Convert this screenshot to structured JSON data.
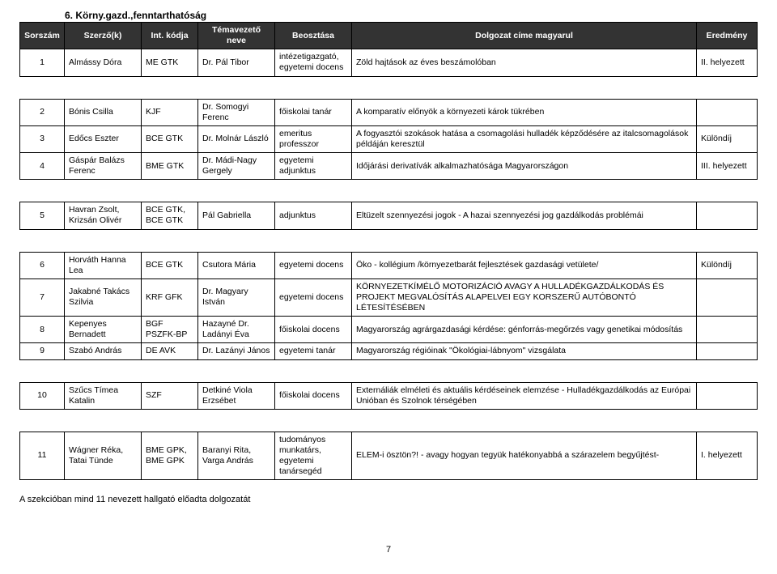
{
  "section_title": "6. Körny.gazd.,fenntarthatóság",
  "headers": {
    "col1": "Sorszám",
    "col2": "Szerző(k)",
    "col3": "Int. kódja",
    "col4": "Témavezető neve",
    "col5": "Beosztása",
    "col6": "Dolgozat címe magyarul",
    "col7": "Eredmény"
  },
  "rows": [
    {
      "n": "1",
      "author": "Almássy Dóra",
      "inst": "ME GTK",
      "sup": "Dr. Pál Tibor",
      "pos": "intézetigazgató, egyetemi docens",
      "title": "Zöld hajtások az éves beszámolóban",
      "res": "II. helyezett"
    },
    {
      "n": "2",
      "author": "Bónis Csilla",
      "inst": "KJF",
      "sup": "Dr. Somogyi Ferenc",
      "pos": "főiskolai tanár",
      "title": "A komparatív előnyök a környezeti károk tükrében",
      "res": ""
    },
    {
      "n": "3",
      "author": "Edőcs Eszter",
      "inst": "BCE GTK",
      "sup": "Dr. Molnár László",
      "pos": "emeritus professzor",
      "title": "A fogyasztói szokások hatása a csomagolási hulladék képződésére az italcsomagolások példáján keresztül",
      "res": "Különdíj"
    },
    {
      "n": "4",
      "author": "Gáspár Balázs Ferenc",
      "inst": "BME GTK",
      "sup": "Dr. Mádi-Nagy Gergely",
      "pos": "egyetemi adjunktus",
      "title": "Időjárási derivatívák alkalmazhatósága Magyarországon",
      "res": "III. helyezett"
    },
    {
      "n": "5",
      "author": "Havran Zsolt, Krizsán Olivér",
      "inst": "BCE GTK, BCE GTK",
      "sup": "Pál Gabriella",
      "pos": "adjunktus",
      "title": "Eltüzelt szennyezési jogok - A hazai szennyezési jog gazdálkodás problémái",
      "res": ""
    },
    {
      "n": "6",
      "author": "Horváth Hanna Lea",
      "inst": "BCE GTK",
      "sup": "Csutora Mária",
      "pos": "egyetemi docens",
      "title": "Öko - kollégium /környezetbarát fejlesztések gazdasági vetülete/",
      "res": "Különdíj"
    },
    {
      "n": "7",
      "author": "Jakabné Takács Szilvia",
      "inst": "KRF GFK",
      "sup": "Dr. Magyary István",
      "pos": "egyetemi docens",
      "title": "KÖRNYEZETKÍMÉLŐ MOTORIZÁCIÓ AVAGY A HULLADÉKGAZDÁLKODÁS ÉS PROJEKT MEGVALÓSÍTÁS ALAPELVEI EGY KORSZERŰ AUTÓBONTÓ LÉTESÍTÉSÉBEN",
      "res": ""
    },
    {
      "n": "8",
      "author": "Kepenyes Bernadett",
      "inst": "BGF PSZFK-BP",
      "sup": "Hazayné Dr. Ladányi Éva",
      "pos": "főiskolai docens",
      "title": "Magyarország agrárgazdasági kérdése: génforrás-megőrzés vagy genetikai módosítás",
      "res": ""
    },
    {
      "n": "9",
      "author": "Szabó András",
      "inst": "DE AVK",
      "sup": "Dr. Lazányi János",
      "pos": "egyetemi tanár",
      "title": "Magyarország régióinak \"Ökológiai-lábnyom\" vizsgálata",
      "res": ""
    },
    {
      "n": "10",
      "author": "Szűcs Tímea Katalin",
      "inst": "SZF",
      "sup": "Detkiné Viola Erzsébet",
      "pos": "főiskolai docens",
      "title": "Externáliák elméleti és aktuális kérdéseinek elemzése - Hulladékgazdálkodás az Európai Unióban és Szolnok térségében",
      "res": ""
    },
    {
      "n": "11",
      "author": "Wágner Réka, Tatai Tünde",
      "inst": "BME GPK, BME GPK",
      "sup": "Baranyi Rita, Varga András",
      "pos": "tudományos munkatárs, egyetemi tanársegéd",
      "title": "ELEM-i ösztön?! - avagy hogyan tegyük hatékonyabbá a szárazelem begyűjtést-",
      "res": "I. helyezett"
    }
  ],
  "footer_note": "A szekcióban mind 11 nevezett hallgató előadta dolgozatát",
  "page_number": "7"
}
